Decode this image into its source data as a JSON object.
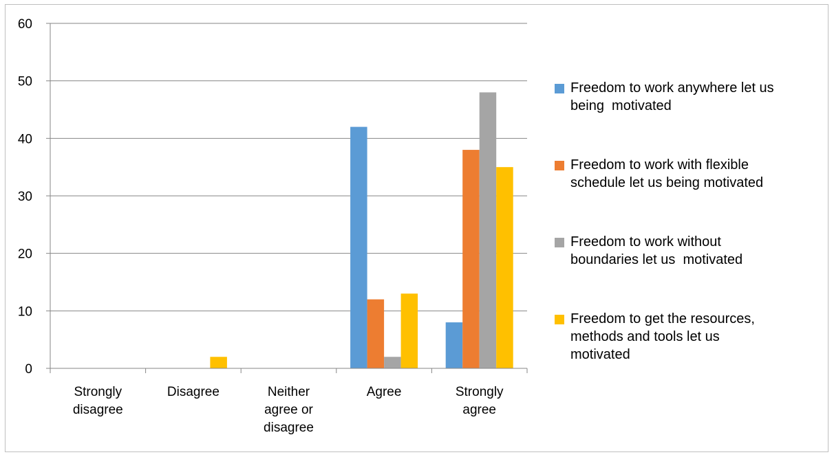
{
  "chart_data": {
    "type": "bar",
    "title": "",
    "xlabel": "",
    "ylabel": "",
    "ylim": [
      0,
      60
    ],
    "yticks": [
      0,
      10,
      20,
      30,
      40,
      50,
      60
    ],
    "grid": true,
    "legend_position": "right",
    "categories": [
      [
        "Strongly",
        "disagree"
      ],
      [
        "Disagree"
      ],
      [
        "Neither",
        "agree or",
        "disagree"
      ],
      [
        "Agree"
      ],
      [
        "Strongly",
        "agree"
      ]
    ],
    "series": [
      {
        "name": [
          "Freedom to work anywhere let us",
          "being  motivated"
        ],
        "color": "#5b9bd5",
        "values": [
          0,
          0,
          0,
          42,
          8
        ]
      },
      {
        "name": [
          "Freedom to work with flexible",
          "schedule let us being motivated"
        ],
        "color": "#ed7d31",
        "values": [
          0,
          0,
          0,
          12,
          38
        ]
      },
      {
        "name": [
          "Freedom to work without",
          "boundaries let us  motivated"
        ],
        "color": "#a5a5a5",
        "values": [
          0,
          0,
          0,
          2,
          48
        ]
      },
      {
        "name": [
          "Freedom to get the resources,",
          "methods and tools let us",
          "motivated"
        ],
        "color": "#ffc000",
        "values": [
          0,
          2,
          0,
          13,
          35
        ]
      }
    ]
  }
}
